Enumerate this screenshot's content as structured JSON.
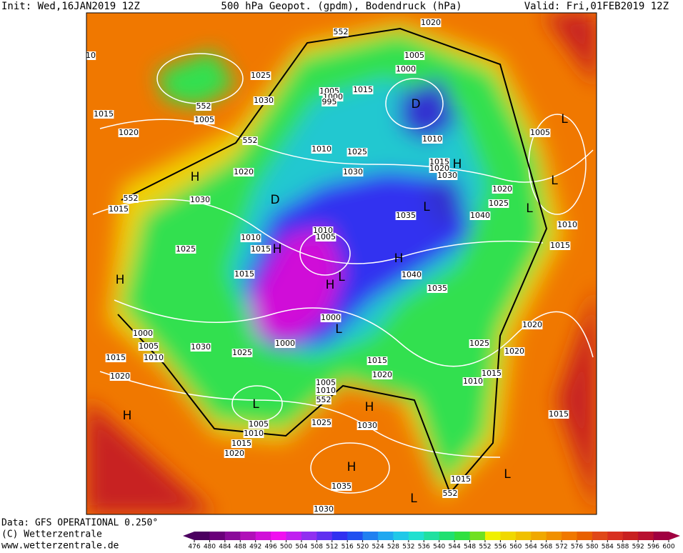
{
  "header": {
    "init": "Init: Wed,16JAN2019 12Z",
    "title": "500 hPa Geopot. (gpdm), Bodendruck (hPa)",
    "valid": "Valid: Fri,01FEB2019 12Z"
  },
  "footer": {
    "data": "Data: GFS OPERATIONAL 0.250°",
    "copyright": "(C) Wetterzentrale",
    "url": "www.wetterzentrale.de"
  },
  "map": {
    "labels": [
      "552",
      "1020",
      "10",
      "1005",
      "1000",
      "1025",
      "1005",
      "1015",
      "1030",
      "1000",
      "995",
      "D",
      "552",
      "1015",
      "1005",
      "L",
      "1020",
      "1005",
      "1010",
      "552",
      "1010",
      "1025",
      "1015",
      "1020",
      "H",
      "1030",
      "1020",
      "1030",
      "H",
      "L",
      "1020",
      "D",
      "1030",
      "552",
      "1015",
      "1025",
      "L",
      "L",
      "1035",
      "1040",
      "1010",
      "1010",
      "1005",
      "1010",
      "1015",
      "1015",
      "H",
      "1025",
      "H",
      "1015",
      "1040",
      "L",
      "H",
      "H",
      "1035",
      "1000",
      "1020",
      "1000",
      "L",
      "1025",
      "1005",
      "1000",
      "1030",
      "1020",
      "1015",
      "1010",
      "1025",
      "1015",
      "1015",
      "1020",
      "1020",
      "1010",
      "1005",
      "1010",
      "552",
      "L",
      "H",
      "H",
      "1015",
      "1025",
      "1030",
      "1005",
      "1010",
      "1015",
      "1020",
      "H",
      "L",
      "1015",
      "1035",
      "552",
      "L",
      "1030"
    ]
  },
  "legend": {
    "ticks": [
      476,
      480,
      484,
      488,
      492,
      496,
      500,
      504,
      508,
      512,
      516,
      520,
      524,
      528,
      532,
      536,
      540,
      544,
      548,
      552,
      556,
      560,
      564,
      568,
      572,
      576,
      580,
      584,
      588,
      592,
      596,
      600
    ],
    "colors": [
      "#4b0060",
      "#6a007a",
      "#8a0a9a",
      "#b010b8",
      "#d010d8",
      "#f010f0",
      "#c020f0",
      "#9030f0",
      "#6030f0",
      "#3030f0",
      "#2050f0",
      "#2080f0",
      "#20a8f0",
      "#20c8e8",
      "#20e0d0",
      "#20e0a0",
      "#20e070",
      "#30e040",
      "#70e020",
      "#f0f000",
      "#f0d800",
      "#f0c000",
      "#f0a800",
      "#f09000",
      "#f07800",
      "#e86000",
      "#e04818",
      "#d83020",
      "#c82020",
      "#b81030",
      "#a00040"
    ]
  }
}
